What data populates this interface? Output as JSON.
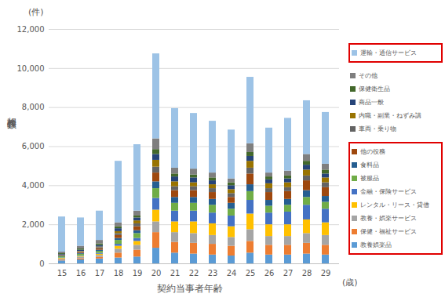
{
  "chart_data": {
    "type": "bar",
    "stacked": true,
    "grid": true,
    "legend": "right",
    "xlabel": "契約当事者年齢",
    "ylabel": "相談件数",
    "x_unit": "(歳)",
    "y_unit": "(件)",
    "categories": [
      "15",
      "16",
      "17",
      "18",
      "19",
      "20",
      "21",
      "22",
      "23",
      "24",
      "25",
      "26",
      "27",
      "28",
      "29"
    ],
    "ylim": [
      0,
      12000
    ],
    "yticks": [
      0,
      {
        "value": 2000,
        "label": "2,000"
      },
      {
        "value": 4000,
        "label": "4,000"
      },
      {
        "value": 6000,
        "label": "6,000"
      },
      {
        "value": 8000,
        "label": "8,000"
      },
      {
        "value": 10000,
        "label": "10,000"
      },
      {
        "value": 12000,
        "label": "12,000"
      }
    ],
    "series": [
      {
        "name": "教養娯楽品",
        "color": "#5b9bd5",
        "values": [
          150,
          200,
          250,
          300,
          350,
          800,
          550,
          500,
          450,
          400,
          550,
          450,
          450,
          500,
          450
        ]
      },
      {
        "name": "保健・福祉サービス",
        "color": "#ed7d31",
        "values": [
          40,
          60,
          80,
          250,
          350,
          800,
          550,
          550,
          550,
          500,
          600,
          500,
          500,
          550,
          500
        ]
      },
      {
        "name": "教養・娯楽サービス",
        "color": "#a5a5a5",
        "values": [
          60,
          80,
          100,
          200,
          250,
          550,
          500,
          500,
          450,
          450,
          600,
          450,
          450,
          500,
          500
        ]
      },
      {
        "name": "レンタル・リース・貸借",
        "color": "#ffc000",
        "values": [
          30,
          40,
          60,
          150,
          200,
          600,
          550,
          600,
          600,
          550,
          800,
          600,
          600,
          700,
          650
        ]
      },
      {
        "name": "金融・保険サービス",
        "color": "#4472c4",
        "values": [
          20,
          30,
          50,
          100,
          150,
          600,
          550,
          550,
          550,
          550,
          700,
          600,
          650,
          750,
          700
        ]
      },
      {
        "name": "被服品",
        "color": "#70ad47",
        "values": [
          60,
          80,
          100,
          200,
          250,
          500,
          400,
          400,
          400,
          350,
          450,
          350,
          350,
          400,
          350
        ]
      },
      {
        "name": "食料品",
        "color": "#255e91",
        "values": [
          30,
          40,
          60,
          100,
          150,
          350,
          300,
          300,
          300,
          300,
          350,
          300,
          300,
          350,
          300
        ]
      },
      {
        "name": "他の役務",
        "color": "#9e480e",
        "values": [
          30,
          50,
          70,
          150,
          200,
          450,
          350,
          350,
          350,
          300,
          550,
          400,
          400,
          500,
          450
        ]
      },
      {
        "name": "車両・乗り物",
        "color": "#636363",
        "values": [
          20,
          40,
          60,
          100,
          150,
          300,
          200,
          200,
          200,
          200,
          300,
          200,
          200,
          250,
          250
        ]
      },
      {
        "name": "内職・副業・ねずみ講",
        "color": "#997300",
        "values": [
          10,
          20,
          30,
          100,
          150,
          350,
          250,
          200,
          200,
          200,
          350,
          250,
          250,
          300,
          250
        ]
      },
      {
        "name": "商品一般",
        "color": "#264478",
        "values": [
          30,
          60,
          80,
          150,
          150,
          300,
          250,
          250,
          200,
          200,
          250,
          200,
          200,
          250,
          200
        ]
      },
      {
        "name": "保健衛生品",
        "color": "#43682b",
        "values": [
          40,
          60,
          80,
          100,
          100,
          250,
          150,
          150,
          150,
          150,
          200,
          150,
          150,
          200,
          200
        ]
      },
      {
        "name": "その他",
        "color": "#7f7f7f",
        "values": [
          80,
          140,
          180,
          200,
          250,
          550,
          300,
          300,
          250,
          200,
          450,
          200,
          250,
          350,
          300
        ]
      },
      {
        "name": "運輸・通信サービス",
        "color": "#9dc3e6",
        "values": [
          1800,
          1450,
          1500,
          3150,
          3400,
          4350,
          3050,
          2850,
          2650,
          2500,
          3400,
          2300,
          2700,
          2750,
          2650
        ]
      }
    ]
  }
}
